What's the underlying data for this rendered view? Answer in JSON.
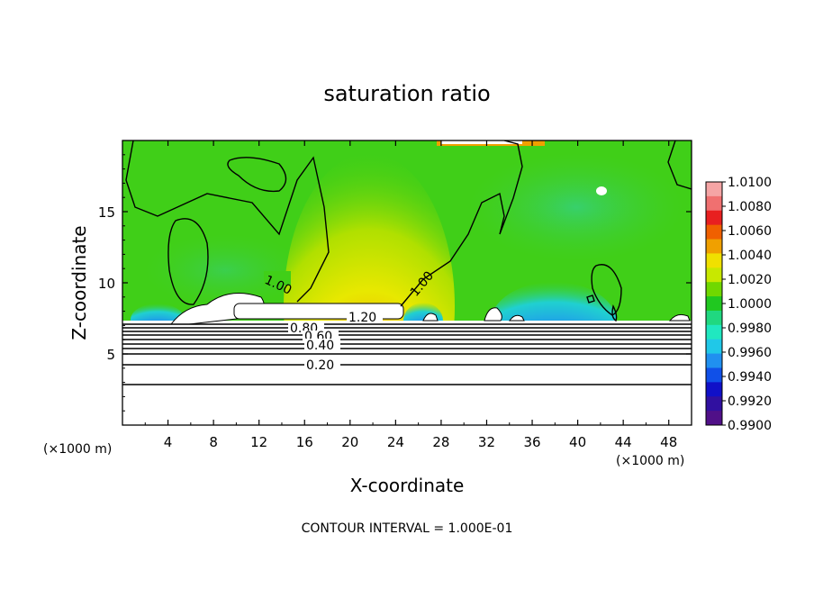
{
  "chart_data": {
    "type": "heatmap",
    "title": "saturation ratio",
    "xlabel": "X-coordinate",
    "ylabel": "Z-coordinate",
    "x_unit": "(×1000 m)",
    "z_unit": "(×1000 m)",
    "xlim": [
      0,
      50
    ],
    "ylim": [
      0,
      20
    ],
    "x_ticks": [
      "4",
      "8",
      "12",
      "16",
      "20",
      "24",
      "28",
      "32",
      "36",
      "40",
      "44",
      "48"
    ],
    "y_ticks": [
      "5",
      "10",
      "15"
    ],
    "colorbar": {
      "labels": [
        "1.0100",
        "1.0080",
        "1.0060",
        "1.0040",
        "1.0020",
        "1.0000",
        "0.9980",
        "0.9960",
        "0.9940",
        "0.9920",
        "0.9900"
      ],
      "colors": [
        "#f5a5a5",
        "#f07070",
        "#e82020",
        "#f06000",
        "#f0a000",
        "#f0e000",
        "#c8e800",
        "#70d800",
        "#20c820",
        "#20d880",
        "#20e8c0",
        "#20c8e8",
        "#2090f0",
        "#1050e8",
        "#1010c8",
        "#3010a0",
        "#501088"
      ]
    },
    "contour_labels": [
      "1.00",
      "1.00",
      "1.20",
      "0.80",
      "0.60",
      "0.40",
      "0.20"
    ],
    "contour_interval_text": "CONTOUR INTERVAL = 1.000E-01"
  }
}
